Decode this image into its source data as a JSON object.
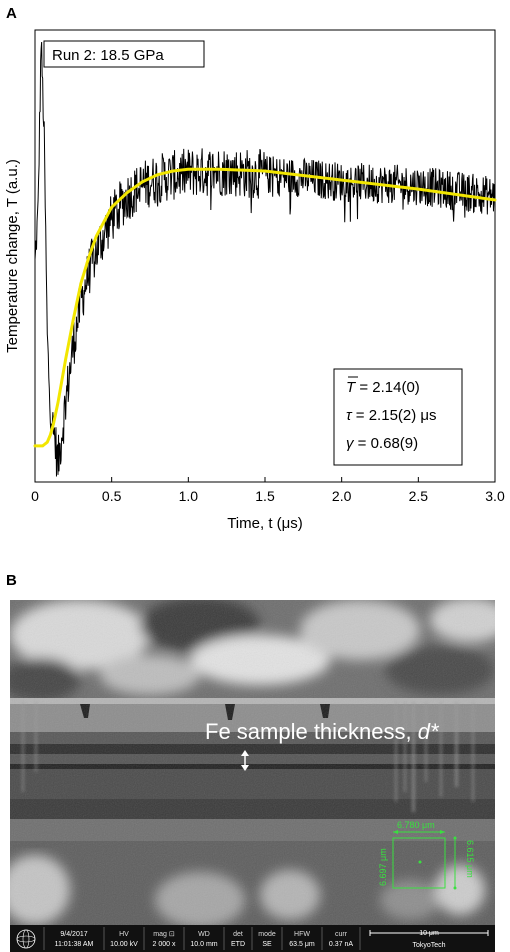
{
  "panel_a": {
    "letter": "A",
    "run_label": "Run 2: 18.5 GPa",
    "params": {
      "t_symbol": "T",
      "t_value": " = 2.14(0)",
      "tau_symbol": "τ",
      "tau_value": " = 2.15(2) μs",
      "gamma_symbol": "γ",
      "gamma_value": " = 0.68(9)"
    }
  },
  "panel_b": {
    "letter": "B",
    "sem_label": "Fe sample thickness, ",
    "sem_label_italic": "d*",
    "measure_top": "6.780 μm",
    "measure_left": "6.697 μm",
    "measure_right": "6.615 μm",
    "info_bar": {
      "date": "9/4/2017",
      "time": "11:01:38 AM",
      "hv_label": "HV",
      "hv": "10.00 kV",
      "mag_label": "mag ⊡",
      "mag": "2 000 x",
      "wd_label": "WD",
      "wd": "10.0 mm",
      "det_label": "det",
      "det": "ETD",
      "mode_label": "mode",
      "mode": "SE",
      "hfw_label": "HFW",
      "hfw": "63.5 μm",
      "curr_label": "curr",
      "curr": "0.37 nA",
      "scale": "10 μm",
      "brand": "TokyoTech"
    }
  },
  "chart_data": {
    "type": "line",
    "xlabel": "Time, t (μs)",
    "ylabel": "Temperature change, T (a.u.)",
    "xlim": [
      0,
      3.0
    ],
    "ylim": [
      0,
      1.25
    ],
    "x_ticks": [
      "0",
      "0.5",
      "1.0",
      "1.5",
      "2.0",
      "2.5",
      "3.0"
    ],
    "series": [
      {
        "color": "#000000",
        "x": [
          0.0,
          0.02,
          0.04,
          0.06,
          0.08,
          0.1,
          0.12,
          0.15,
          0.2,
          0.25,
          0.3,
          0.35,
          0.4,
          0.5,
          0.6,
          0.7,
          0.8,
          1.0,
          1.2,
          1.5,
          1.8,
          2.0,
          2.5,
          3.0
        ],
        "y": [
          0.6,
          0.75,
          1.22,
          0.95,
          0.4,
          0.2,
          0.15,
          0.05,
          0.22,
          0.38,
          0.5,
          0.58,
          0.64,
          0.73,
          0.79,
          0.82,
          0.84,
          0.855,
          0.86,
          0.85,
          0.84,
          0.83,
          0.82,
          0.79
        ]
      },
      {
        "color": "#f2e600",
        "x": [
          0.0,
          0.05,
          0.08,
          0.1,
          0.12,
          0.15,
          0.2,
          0.25,
          0.3,
          0.35,
          0.4,
          0.5,
          0.6,
          0.7,
          0.8,
          0.9,
          1.0,
          1.2,
          1.5,
          1.8,
          2.0,
          2.5,
          3.0
        ],
        "y": [
          0.1,
          0.1,
          0.11,
          0.13,
          0.16,
          0.22,
          0.34,
          0.45,
          0.55,
          0.62,
          0.68,
          0.76,
          0.8,
          0.83,
          0.85,
          0.86,
          0.865,
          0.865,
          0.86,
          0.845,
          0.835,
          0.81,
          0.78
        ]
      }
    ]
  },
  "colors": {
    "noise_line": "#000000",
    "fit_line": "#f2e600",
    "measure_green": "#39e03f"
  }
}
